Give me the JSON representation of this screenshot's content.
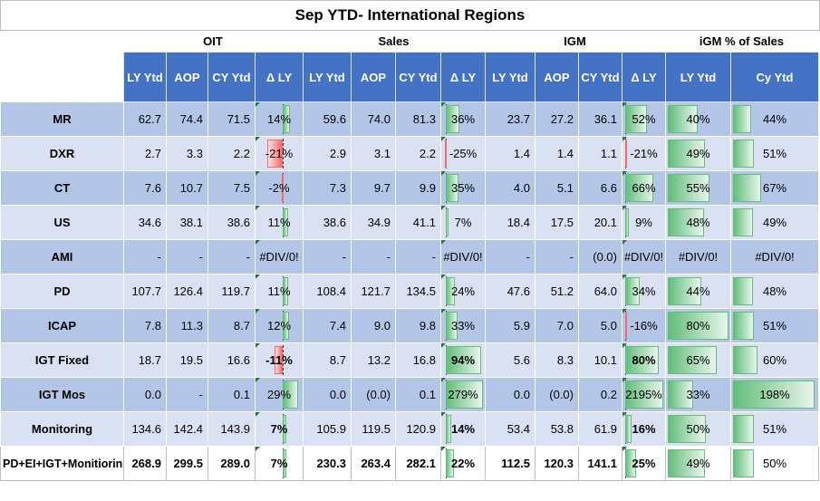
{
  "title": "Sep YTD- International Regions",
  "groups": {
    "oit": "OIT",
    "sales": "Sales",
    "igm": "IGM",
    "igm_pct": "iGM % of Sales"
  },
  "headers": [
    "LY Ytd",
    "AOP",
    "CY Ytd",
    "Δ LY",
    "LY Ytd",
    "AOP",
    "CY Ytd",
    "Δ LY",
    "LY Ytd",
    "AOP",
    "CY Ytd",
    "Δ LY",
    "LY Ytd",
    "Cy Ytd"
  ],
  "colors": {
    "header_blue": "#4472c4",
    "row_dark": "#b4c6e7",
    "row_light": "#d9e1f2",
    "bar_green": "#63be7b",
    "bar_red": "#f8696b"
  },
  "rows": [
    {
      "label": "MR",
      "oit": [
        "62.7",
        "74.4",
        "71.5",
        "14%"
      ],
      "oit_d": 0.14,
      "sales": [
        "59.6",
        "74.0",
        "81.3",
        "36%"
      ],
      "sales_d": 0.36,
      "igm": [
        "23.7",
        "27.2",
        "36.1",
        "52%"
      ],
      "igm_d": 0.52,
      "pct": [
        "40%",
        "44%"
      ],
      "pct_v": [
        0.4,
        0.44
      ]
    },
    {
      "label": "DXR",
      "oit": [
        "2.7",
        "3.3",
        "2.2",
        "-21%"
      ],
      "oit_d": -0.21,
      "sales": [
        "2.9",
        "3.1",
        "2.2",
        "-25%"
      ],
      "sales_d": -0.25,
      "igm": [
        "1.4",
        "1.4",
        "1.1",
        "-21%"
      ],
      "igm_d": -0.21,
      "pct": [
        "49%",
        "51%"
      ],
      "pct_v": [
        0.49,
        0.51
      ]
    },
    {
      "label": "CT",
      "oit": [
        "7.6",
        "10.7",
        "7.5",
        "-2%"
      ],
      "oit_d": -0.02,
      "sales": [
        "7.3",
        "9.7",
        "9.9",
        "35%"
      ],
      "sales_d": 0.35,
      "igm": [
        "4.0",
        "5.1",
        "6.6",
        "66%"
      ],
      "igm_d": 0.66,
      "pct": [
        "55%",
        "67%"
      ],
      "pct_v": [
        0.55,
        0.67
      ]
    },
    {
      "label": "US",
      "oit": [
        "34.6",
        "38.1",
        "38.6",
        "11%"
      ],
      "oit_d": 0.11,
      "sales": [
        "38.6",
        "34.9",
        "41.1",
        "7%"
      ],
      "sales_d": 0.07,
      "igm": [
        "18.4",
        "17.5",
        "20.1",
        "9%"
      ],
      "igm_d": 0.09,
      "pct": [
        "48%",
        "49%"
      ],
      "pct_v": [
        0.48,
        0.49
      ]
    },
    {
      "label": "AMI",
      "oit": [
        "-",
        "-",
        "-",
        "#DIV/0!"
      ],
      "oit_d": null,
      "sales": [
        "-",
        "-",
        "-",
        "#DIV/0!"
      ],
      "sales_d": null,
      "igm": [
        "-",
        "-",
        "(0.0)",
        "#DIV/0!"
      ],
      "igm_d": null,
      "pct": [
        "#DIV/0!",
        "#DIV/0!"
      ],
      "pct_v": [
        null,
        null
      ]
    },
    {
      "label": "PD",
      "oit": [
        "107.7",
        "126.4",
        "119.7",
        "11%"
      ],
      "oit_d": 0.11,
      "sales": [
        "108.4",
        "121.7",
        "134.5",
        "24%"
      ],
      "sales_d": 0.24,
      "igm": [
        "47.6",
        "51.2",
        "64.0",
        "34%"
      ],
      "igm_d": 0.34,
      "pct": [
        "44%",
        "48%"
      ],
      "pct_v": [
        0.44,
        0.48
      ]
    },
    {
      "label": "ICAP",
      "oit": [
        "7.8",
        "11.3",
        "8.7",
        "12%"
      ],
      "oit_d": 0.12,
      "sales": [
        "7.4",
        "9.0",
        "9.8",
        "33%"
      ],
      "sales_d": 0.33,
      "igm": [
        "5.9",
        "7.0",
        "5.0",
        "-16%"
      ],
      "igm_d": -0.16,
      "pct": [
        "80%",
        "51%"
      ],
      "pct_v": [
        0.8,
        0.51
      ]
    },
    {
      "label": "IGT Fixed",
      "oit": [
        "18.7",
        "19.5",
        "16.6",
        "-11%"
      ],
      "oit_d": -0.11,
      "sales": [
        "8.7",
        "13.2",
        "16.8",
        "94%"
      ],
      "sales_d": 0.94,
      "igm": [
        "5.6",
        "8.3",
        "10.1",
        "80%"
      ],
      "igm_d": 0.8,
      "pct": [
        "65%",
        "60%"
      ],
      "pct_v": [
        0.65,
        0.6
      ]
    },
    {
      "label": "IGT Mos",
      "oit": [
        "0.0",
        "-",
        "0.1",
        "29%"
      ],
      "oit_d": 0.29,
      "sales": [
        "0.0",
        "(0.0)",
        "0.1",
        "279%"
      ],
      "sales_d": 2.79,
      "igm": [
        "0.0",
        "(0.0)",
        "0.2",
        "2195%"
      ],
      "igm_d": 21.95,
      "pct": [
        "33%",
        "198%"
      ],
      "pct_v": [
        0.33,
        1.98
      ]
    },
    {
      "label": "Monitoring",
      "oit": [
        "134.6",
        "142.4",
        "143.9",
        "7%"
      ],
      "oit_d": 0.07,
      "sales": [
        "105.9",
        "119.5",
        "120.9",
        "14%"
      ],
      "sales_d": 0.14,
      "igm": [
        "53.4",
        "53.8",
        "61.9",
        "16%"
      ],
      "igm_d": 0.16,
      "pct": [
        "50%",
        "51%"
      ],
      "pct_v": [
        0.5,
        0.51
      ]
    },
    {
      "label": "PD+EI+IGT+Monitiorin",
      "oit": [
        "268.9",
        "299.5",
        "289.0",
        "7%"
      ],
      "oit_d": 0.07,
      "sales": [
        "230.3",
        "263.4",
        "282.1",
        "22%"
      ],
      "sales_d": 0.22,
      "igm": [
        "112.5",
        "120.3",
        "141.1",
        "25%"
      ],
      "igm_d": 0.25,
      "pct": [
        "49%",
        "50%"
      ],
      "pct_v": [
        0.49,
        0.5
      ]
    }
  ]
}
